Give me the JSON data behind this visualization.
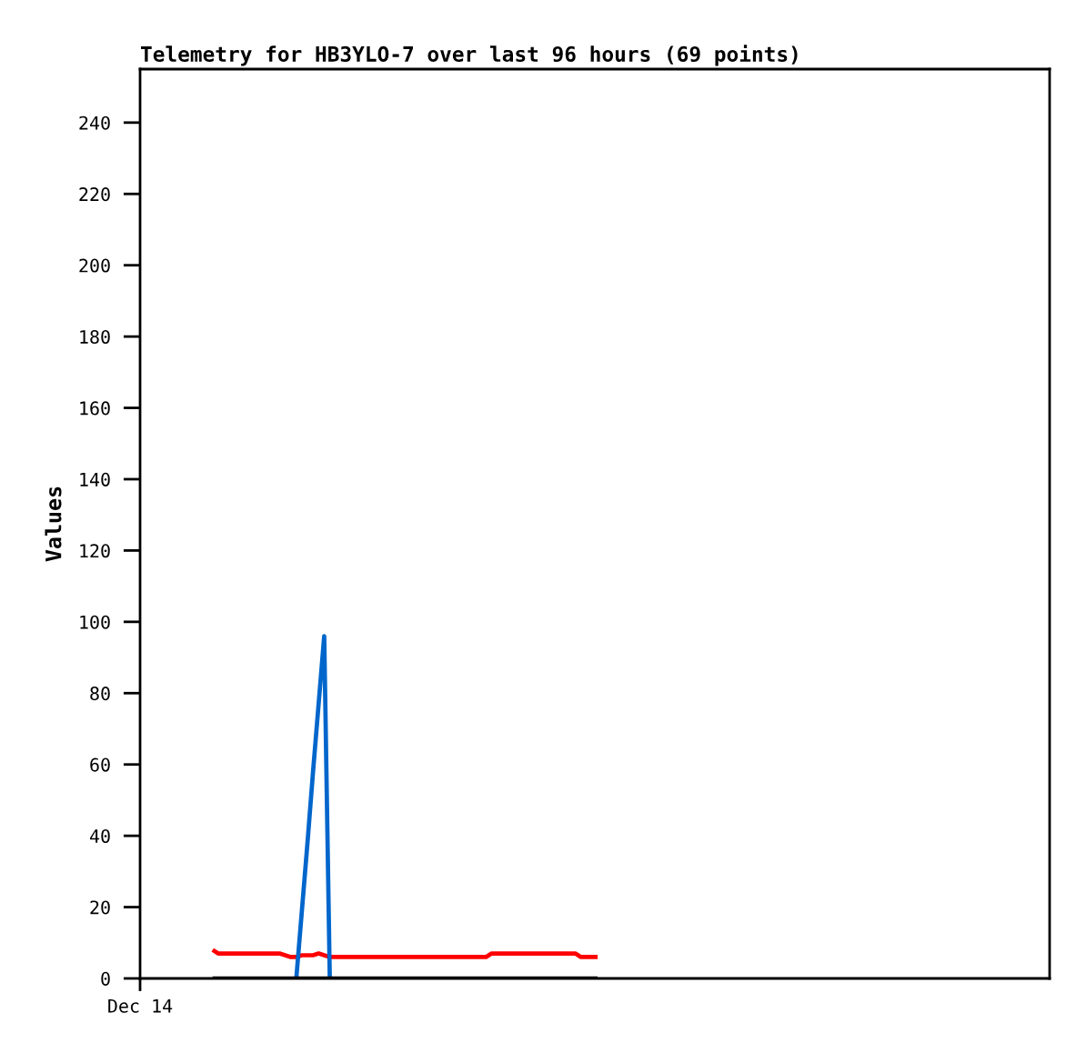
{
  "chart_data": {
    "type": "line",
    "title": "Telemetry for HB3YLO-7 over last 96 hours (69 points)",
    "ylabel": "Values",
    "ylim": [
      0,
      255
    ],
    "yticks": [
      0,
      20,
      40,
      60,
      80,
      100,
      120,
      140,
      160,
      180,
      200,
      220,
      240
    ],
    "categories": [
      "Dec 14",
      null,
      null,
      null,
      null,
      null,
      null,
      null,
      null,
      null,
      null,
      null,
      null,
      null,
      null,
      null,
      null,
      null,
      null,
      null,
      null,
      null,
      null,
      null,
      null,
      null,
      null,
      null,
      null,
      null,
      null,
      null,
      null,
      null,
      null,
      null,
      null,
      null,
      null,
      null,
      null,
      null,
      null,
      null,
      null,
      null,
      null,
      null,
      null,
      null,
      null,
      null,
      null,
      null,
      null,
      null,
      null,
      null,
      null,
      null,
      null,
      null,
      null,
      null,
      null,
      null,
      null,
      null,
      null,
      null,
      null,
      null,
      null,
      null,
      null,
      null,
      null,
      null,
      null,
      null,
      null,
      null,
      null,
      null,
      null,
      null,
      null,
      null,
      null,
      null,
      null,
      null,
      null,
      null,
      null,
      null,
      null,
      null,
      null,
      null,
      null,
      null,
      null,
      null,
      null,
      null,
      null,
      null,
      null,
      null,
      null,
      null,
      null,
      null,
      null,
      null,
      null,
      null,
      null,
      null,
      null,
      null,
      null,
      null,
      null,
      null,
      null,
      null,
      null,
      null,
      null,
      null,
      null,
      null,
      null,
      null,
      null,
      null,
      null,
      null,
      null,
      null,
      null,
      null,
      null,
      null,
      null,
      null,
      null,
      null,
      null,
      null,
      null,
      null,
      null,
      null,
      null,
      null,
      null,
      null,
      null,
      null,
      null,
      null
    ],
    "series": [
      {
        "color": "#ff0000",
        "values": [
          null,
          null,
          null,
          null,
          null,
          null,
          null,
          null,
          null,
          null,
          null,
          null,
          null,
          8,
          7,
          7,
          7,
          7,
          7,
          7,
          7,
          7,
          7,
          7,
          7,
          7,
          6.5,
          6,
          6,
          6.5,
          6.5,
          6.5,
          7,
          6.5,
          6,
          6,
          6,
          6,
          6,
          6,
          6,
          6,
          6,
          6,
          6,
          6,
          6,
          6,
          6,
          6,
          6,
          6,
          6,
          6,
          6,
          6,
          6,
          6,
          6,
          6,
          6,
          6,
          6,
          7,
          7,
          7,
          7,
          7,
          7,
          7,
          7,
          7,
          7,
          7,
          7,
          7,
          7,
          7,
          7,
          6,
          6,
          6,
          6,
          null,
          null,
          null,
          null,
          null,
          null,
          null,
          null,
          null,
          null,
          null,
          null,
          null,
          null,
          null,
          null,
          null,
          null,
          null,
          null,
          null,
          null,
          null,
          null,
          null,
          null,
          null,
          null,
          null,
          null,
          null,
          null,
          null,
          null,
          null,
          null,
          null,
          null,
          null,
          null,
          null,
          null,
          null,
          null,
          null,
          null,
          null,
          null,
          null,
          null,
          null,
          null,
          null,
          null,
          null,
          null,
          null,
          null,
          null,
          null,
          null,
          null,
          null,
          null,
          null,
          null,
          null,
          null,
          null,
          null,
          null,
          null,
          null,
          null,
          null,
          null,
          null,
          null,
          null,
          null,
          null
        ]
      },
      {
        "color": "#0066cc",
        "values": [
          null,
          null,
          null,
          null,
          null,
          null,
          null,
          null,
          null,
          null,
          null,
          null,
          null,
          null,
          null,
          null,
          null,
          null,
          null,
          null,
          null,
          null,
          null,
          null,
          null,
          null,
          null,
          null,
          0,
          19,
          38,
          58,
          77,
          96,
          0,
          null,
          null,
          null,
          null,
          null,
          null,
          null,
          null,
          null,
          null,
          null,
          null,
          null,
          null,
          null,
          null,
          null,
          null,
          null,
          null,
          null,
          null,
          null,
          null,
          null,
          null,
          null,
          null,
          null,
          null,
          null,
          null,
          null,
          null,
          null,
          null,
          null,
          null,
          null,
          null,
          null,
          null,
          null,
          null,
          null,
          null,
          null,
          null,
          null,
          null,
          null,
          null,
          null,
          null,
          null,
          null,
          null,
          null,
          null,
          null,
          null,
          null,
          null,
          null,
          null,
          null,
          null,
          null,
          null,
          null,
          null,
          null,
          null,
          null,
          null,
          null,
          null,
          null,
          null,
          null,
          null,
          null,
          null,
          null,
          null,
          null,
          null,
          null,
          null,
          null,
          null,
          null,
          null,
          null,
          null,
          null,
          null,
          null,
          null,
          null,
          null,
          null,
          null,
          null,
          null,
          null,
          null,
          null,
          null,
          null,
          null,
          null,
          null,
          null,
          null,
          null,
          null,
          null,
          null,
          null,
          null,
          null,
          null,
          null,
          null,
          null,
          null,
          null,
          null
        ]
      },
      {
        "color": "#000000",
        "values": [
          null,
          null,
          null,
          null,
          null,
          null,
          null,
          null,
          null,
          null,
          null,
          null,
          null,
          0,
          0,
          0,
          0,
          0,
          0,
          0,
          0,
          0,
          0,
          0,
          0,
          0,
          0,
          0,
          0,
          0,
          0,
          0,
          0,
          0,
          0,
          0,
          0,
          0,
          0,
          0,
          0,
          0,
          0,
          0,
          0,
          0,
          0,
          0,
          0,
          0,
          0,
          0,
          0,
          0,
          0,
          0,
          0,
          0,
          0,
          0,
          0,
          0,
          0,
          0,
          0,
          0,
          0,
          0,
          0,
          0,
          0,
          0,
          0,
          0,
          0,
          0,
          0,
          0,
          0,
          0,
          0,
          0,
          0,
          null,
          null,
          null,
          null,
          null,
          null,
          null,
          null,
          null,
          null,
          null,
          null,
          null,
          null,
          null,
          null,
          null,
          null,
          null,
          null,
          null,
          null,
          null,
          null,
          null,
          null,
          null,
          null,
          null,
          null,
          null,
          null,
          null,
          null,
          null,
          null,
          null,
          null,
          null,
          null,
          null,
          null,
          null,
          null,
          null,
          null,
          null,
          null,
          null,
          null,
          null,
          null,
          null,
          null,
          null,
          null,
          null,
          null,
          null,
          null,
          null,
          null,
          null,
          null,
          null,
          null,
          null,
          null,
          null,
          null,
          null,
          null,
          null,
          null,
          null,
          null,
          null,
          null,
          null,
          null,
          null
        ]
      }
    ]
  }
}
